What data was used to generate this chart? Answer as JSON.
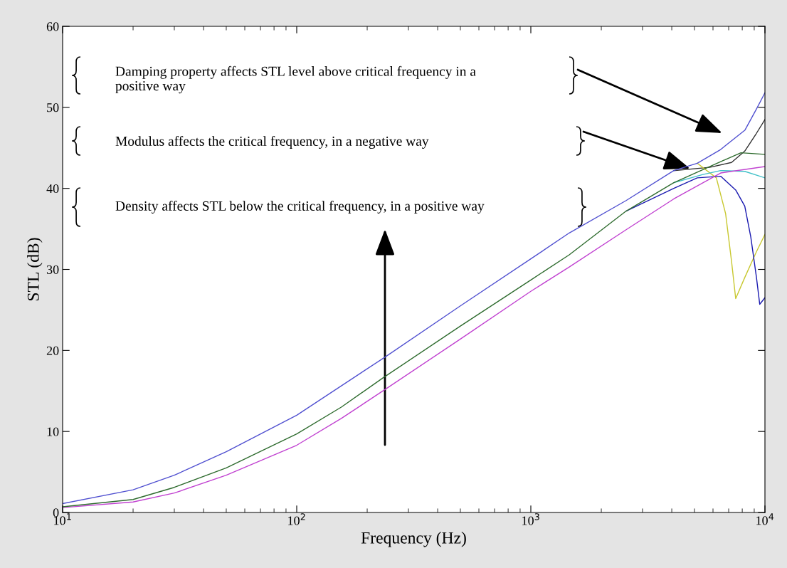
{
  "chart_data": {
    "type": "line",
    "xlabel": "Frequency (Hz)",
    "ylabel": "STL (dB)",
    "log": "x",
    "grid": false,
    "xlim": [
      10,
      10000
    ],
    "xticks": [
      {
        "value": 10,
        "label": "10$^{1}$"
      },
      {
        "value": 100,
        "label": "10$^{2}$"
      },
      {
        "value": 1000,
        "label": "10$^{3}$"
      },
      {
        "value": 10000,
        "label": "10$^{4}$"
      }
    ],
    "ylim": [
      0,
      60
    ],
    "yticks": [
      0,
      10,
      20,
      30,
      40,
      50,
      60
    ],
    "series": [
      {
        "color": "#303030",
        "x": [
          4080,
          5800,
          7200,
          8200,
          9200,
          10000
        ],
        "values": [
          42.2,
          42.6,
          43.2,
          44.6,
          46.8,
          48.5
        ]
      },
      {
        "color": "#c8c830",
        "x": [
          5140,
          6200,
          6790,
          7200,
          7500,
          8200,
          9200,
          10000
        ],
        "values": [
          43.1,
          41.3,
          36.9,
          31.0,
          26.4,
          29.0,
          32.2,
          34.3
        ]
      },
      {
        "color": "#40c0c8",
        "x": [
          4080,
          5400,
          6470,
          8200,
          10000
        ],
        "values": [
          40.7,
          41.7,
          42.2,
          42.1,
          41.3
        ]
      },
      {
        "color": "#1a1ab0",
        "x": [
          2553,
          4080,
          5140,
          6470,
          7500,
          8200,
          8700,
          9200,
          9500,
          10000
        ],
        "values": [
          37.2,
          40.0,
          41.3,
          41.5,
          39.8,
          37.8,
          34.0,
          29.0,
          25.7,
          26.5
        ]
      },
      {
        "color": "#c040d0",
        "x": [
          10,
          20,
          30,
          50,
          100,
          155,
          236,
          500,
          1000,
          1459,
          2553,
          4080,
          6470,
          10000
        ],
        "values": [
          0.6,
          1.3,
          2.4,
          4.6,
          8.3,
          11.6,
          15.1,
          21.4,
          27.3,
          30.3,
          34.9,
          38.7,
          41.9,
          42.7
        ]
      },
      {
        "color": "#2e6b2e",
        "x": [
          10,
          20,
          30,
          50,
          100,
          155,
          236,
          500,
          1000,
          1459,
          2553,
          4080,
          6470,
          7900,
          10000
        ],
        "values": [
          0.7,
          1.6,
          3.1,
          5.5,
          9.7,
          13.0,
          16.7,
          23.0,
          28.7,
          31.8,
          37.2,
          40.7,
          43.3,
          44.4,
          44.2
        ]
      },
      {
        "color": "#5050d0",
        "x": [
          10,
          20,
          30,
          50,
          100,
          236,
          500,
          1000,
          1459,
          2553,
          4080,
          5140,
          6470,
          8220,
          9200,
          10000
        ],
        "values": [
          1.1,
          2.8,
          4.6,
          7.5,
          12.0,
          19.1,
          25.5,
          31.3,
          34.5,
          38.5,
          42.2,
          43.1,
          44.8,
          47.2,
          49.8,
          51.8
        ]
      }
    ],
    "annotations": [
      "Damping property affects STL level above critical frequency in a\npositive way",
      "Modulus affects the critical frequency, in a negative way",
      "Density affects STL below the critical frequency, in a positive way"
    ]
  }
}
